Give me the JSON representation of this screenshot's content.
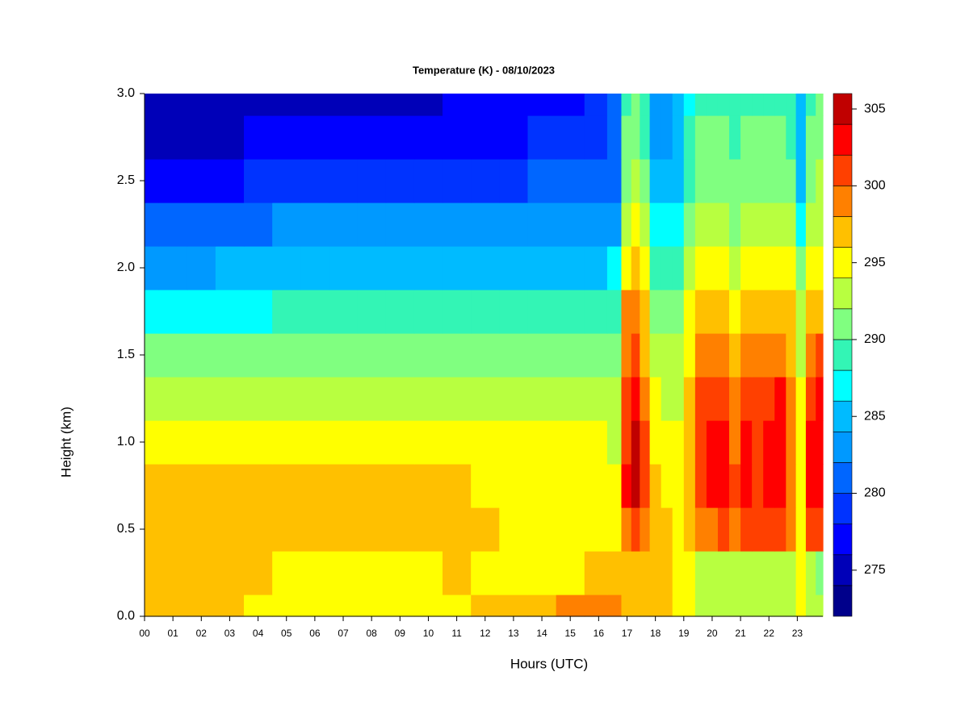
{
  "chart_data": {
    "type": "heatmap",
    "title": "Temperature (K) - 08/10/2023",
    "x_label": "Hours (UTC)",
    "y_label": "Height (km)",
    "xlim": [
      0,
      23.9
    ],
    "ylim": [
      0,
      3.0
    ],
    "xticks": [
      {
        "value": 0,
        "label": "00"
      },
      {
        "value": 1,
        "label": "01"
      },
      {
        "value": 2,
        "label": "02"
      },
      {
        "value": 3,
        "label": "03"
      },
      {
        "value": 4,
        "label": "04"
      },
      {
        "value": 5,
        "label": "05"
      },
      {
        "value": 6,
        "label": "06"
      },
      {
        "value": 7,
        "label": "07"
      },
      {
        "value": 8,
        "label": "08"
      },
      {
        "value": 9,
        "label": "09"
      },
      10,
      11,
      12,
      13,
      14,
      15,
      16,
      17,
      18,
      19,
      20,
      21,
      22,
      23
    ],
    "yticks": [
      {
        "value": 0,
        "label": "0.0"
      },
      0.5,
      {
        "value": 1,
        "label": "1.0"
      },
      1.5,
      {
        "value": 2,
        "label": "2.0"
      },
      2.5,
      {
        "value": 3,
        "label": "3.0"
      }
    ],
    "x": [
      0,
      1,
      2,
      3,
      4,
      5,
      6,
      7,
      8,
      9,
      10,
      11,
      12,
      13,
      14,
      15,
      16,
      16.6,
      17.0,
      17.3,
      17.6,
      18.0,
      18.4,
      18.8,
      19.2,
      19.6,
      20.0,
      20.4,
      20.8,
      21.2,
      21.6,
      22.0,
      22.4,
      22.8,
      23.1,
      23.5,
      23.8
    ],
    "y": [
      0,
      0.25,
      0.5,
      0.75,
      1.0,
      1.25,
      1.5,
      1.75,
      2.0,
      2.25,
      2.5,
      2.75,
      3.0
    ],
    "z": [
      [
        297,
        296,
        296,
        296,
        295,
        295,
        295,
        295,
        295,
        295,
        295,
        295,
        296,
        296.5,
        297,
        298.5,
        298.5,
        298,
        297,
        296,
        297,
        297,
        296.5,
        295,
        294,
        293,
        293,
        293,
        293,
        293,
        293,
        293,
        293,
        293,
        294,
        293,
        293
      ],
      [
        297,
        297,
        297,
        297,
        296,
        295.5,
        295.5,
        295.5,
        295.5,
        295.5,
        295.5,
        296,
        295,
        295,
        295,
        295,
        296,
        297,
        296,
        296,
        296,
        296,
        296,
        295,
        294,
        293,
        293,
        293,
        293,
        293,
        293,
        293,
        293,
        293,
        294,
        292,
        291
      ],
      [
        297,
        297,
        297,
        297,
        297,
        297,
        297,
        297,
        297,
        297,
        297,
        296.5,
        296,
        295.5,
        295.5,
        295,
        295,
        295,
        299,
        301,
        298,
        296,
        296,
        295,
        296,
        299,
        299,
        300,
        299,
        300,
        300,
        300,
        300,
        298,
        294,
        300,
        300
      ],
      [
        296,
        297,
        297,
        297,
        297,
        296.5,
        296,
        296,
        296,
        296,
        296,
        296,
        295.5,
        295,
        295,
        295,
        295,
        294,
        302,
        304,
        300,
        296,
        295.5,
        295,
        297,
        301,
        302,
        302,
        300,
        302,
        301,
        302,
        303,
        299,
        294,
        302,
        302
      ],
      [
        294,
        294.5,
        294.5,
        294,
        294,
        294,
        294,
        294,
        294,
        294,
        294,
        294,
        294,
        294,
        294,
        294,
        294,
        293,
        301,
        304,
        300,
        295,
        294.5,
        294,
        297,
        301,
        302,
        302,
        299,
        302,
        301,
        302,
        303,
        299,
        294,
        302,
        303
      ],
      [
        292.5,
        292.5,
        292.5,
        292.5,
        292.5,
        293,
        293,
        293,
        293,
        293,
        293,
        293,
        293,
        293,
        293,
        293,
        293,
        292,
        300,
        302,
        298,
        294,
        293.5,
        293,
        296,
        300,
        300,
        300,
        298,
        301,
        300,
        301,
        302,
        298,
        294,
        301,
        302
      ],
      [
        290,
        290,
        290,
        290.5,
        290.5,
        290.5,
        291,
        291,
        291,
        291,
        291,
        291,
        291,
        291,
        291,
        291,
        291,
        291,
        299,
        300,
        297,
        293,
        292,
        292,
        295,
        298,
        298,
        298,
        297,
        299,
        298,
        299,
        299,
        297,
        293,
        299,
        300
      ],
      [
        287,
        287,
        287.5,
        287.5,
        287.5,
        288,
        288,
        288,
        288,
        288,
        288,
        288,
        288,
        288,
        288,
        288,
        288,
        289,
        298,
        298,
        296,
        291,
        290,
        290,
        294,
        296,
        296,
        296,
        295,
        297,
        297,
        297,
        297,
        296,
        292,
        297,
        297
      ],
      [
        283,
        283,
        283,
        284,
        284,
        285,
        285,
        285,
        285,
        285,
        285,
        285,
        285,
        285,
        285,
        285,
        285.5,
        286,
        295,
        296,
        294,
        289,
        288,
        288,
        292,
        294,
        294,
        294,
        293,
        295,
        295,
        295,
        295,
        294,
        290,
        295,
        295
      ],
      [
        281,
        281,
        281,
        281.5,
        281.5,
        282,
        282,
        282,
        282,
        282,
        282,
        282,
        282,
        282,
        283,
        283,
        283,
        283,
        293,
        294,
        292,
        287,
        286,
        286,
        290,
        292,
        292,
        292,
        291,
        293,
        293,
        293,
        293,
        292,
        287,
        293,
        293
      ],
      [
        277,
        277,
        277,
        277.5,
        278,
        278,
        278,
        278,
        278,
        278,
        279,
        279,
        279,
        279,
        280,
        280,
        281,
        281,
        291,
        292,
        290,
        285,
        284,
        285,
        289,
        291,
        291,
        291,
        290,
        291,
        291,
        291,
        291,
        290,
        285,
        291,
        292
      ],
      [
        275,
        275,
        275,
        275,
        276,
        276,
        276,
        276,
        276,
        277,
        277,
        277,
        277,
        277,
        278,
        278,
        279,
        280,
        290,
        291,
        289,
        283,
        283,
        284,
        288,
        290,
        290,
        290,
        289,
        290,
        290,
        290,
        290,
        289,
        284,
        290,
        291
      ],
      [
        274,
        274,
        274,
        274,
        275,
        275,
        275,
        275,
        275,
        275,
        275,
        276,
        276,
        276,
        277,
        277,
        278,
        280,
        289,
        290,
        288,
        282,
        282,
        284,
        287,
        289,
        289,
        289,
        288,
        289,
        289,
        289,
        289,
        288,
        284,
        289,
        290
      ]
    ],
    "levels": [
      272,
      274,
      276,
      278,
      280,
      282,
      284,
      286,
      288,
      290,
      292,
      294,
      296,
      298,
      300,
      302,
      304,
      306
    ],
    "colors": [
      "#00008b",
      "#0000b8",
      "#0000ff",
      "#0033ff",
      "#0066ff",
      "#0099ff",
      "#00bbff",
      "#00ffff",
      "#33f5b5",
      "#80ff80",
      "#b8ff40",
      "#ffff00",
      "#ffc000",
      "#ff8000",
      "#ff4000",
      "#ff0000",
      "#c00000",
      "#800000"
    ],
    "colorbar_ticks": [
      275,
      280,
      285,
      290,
      295,
      300,
      305
    ]
  }
}
